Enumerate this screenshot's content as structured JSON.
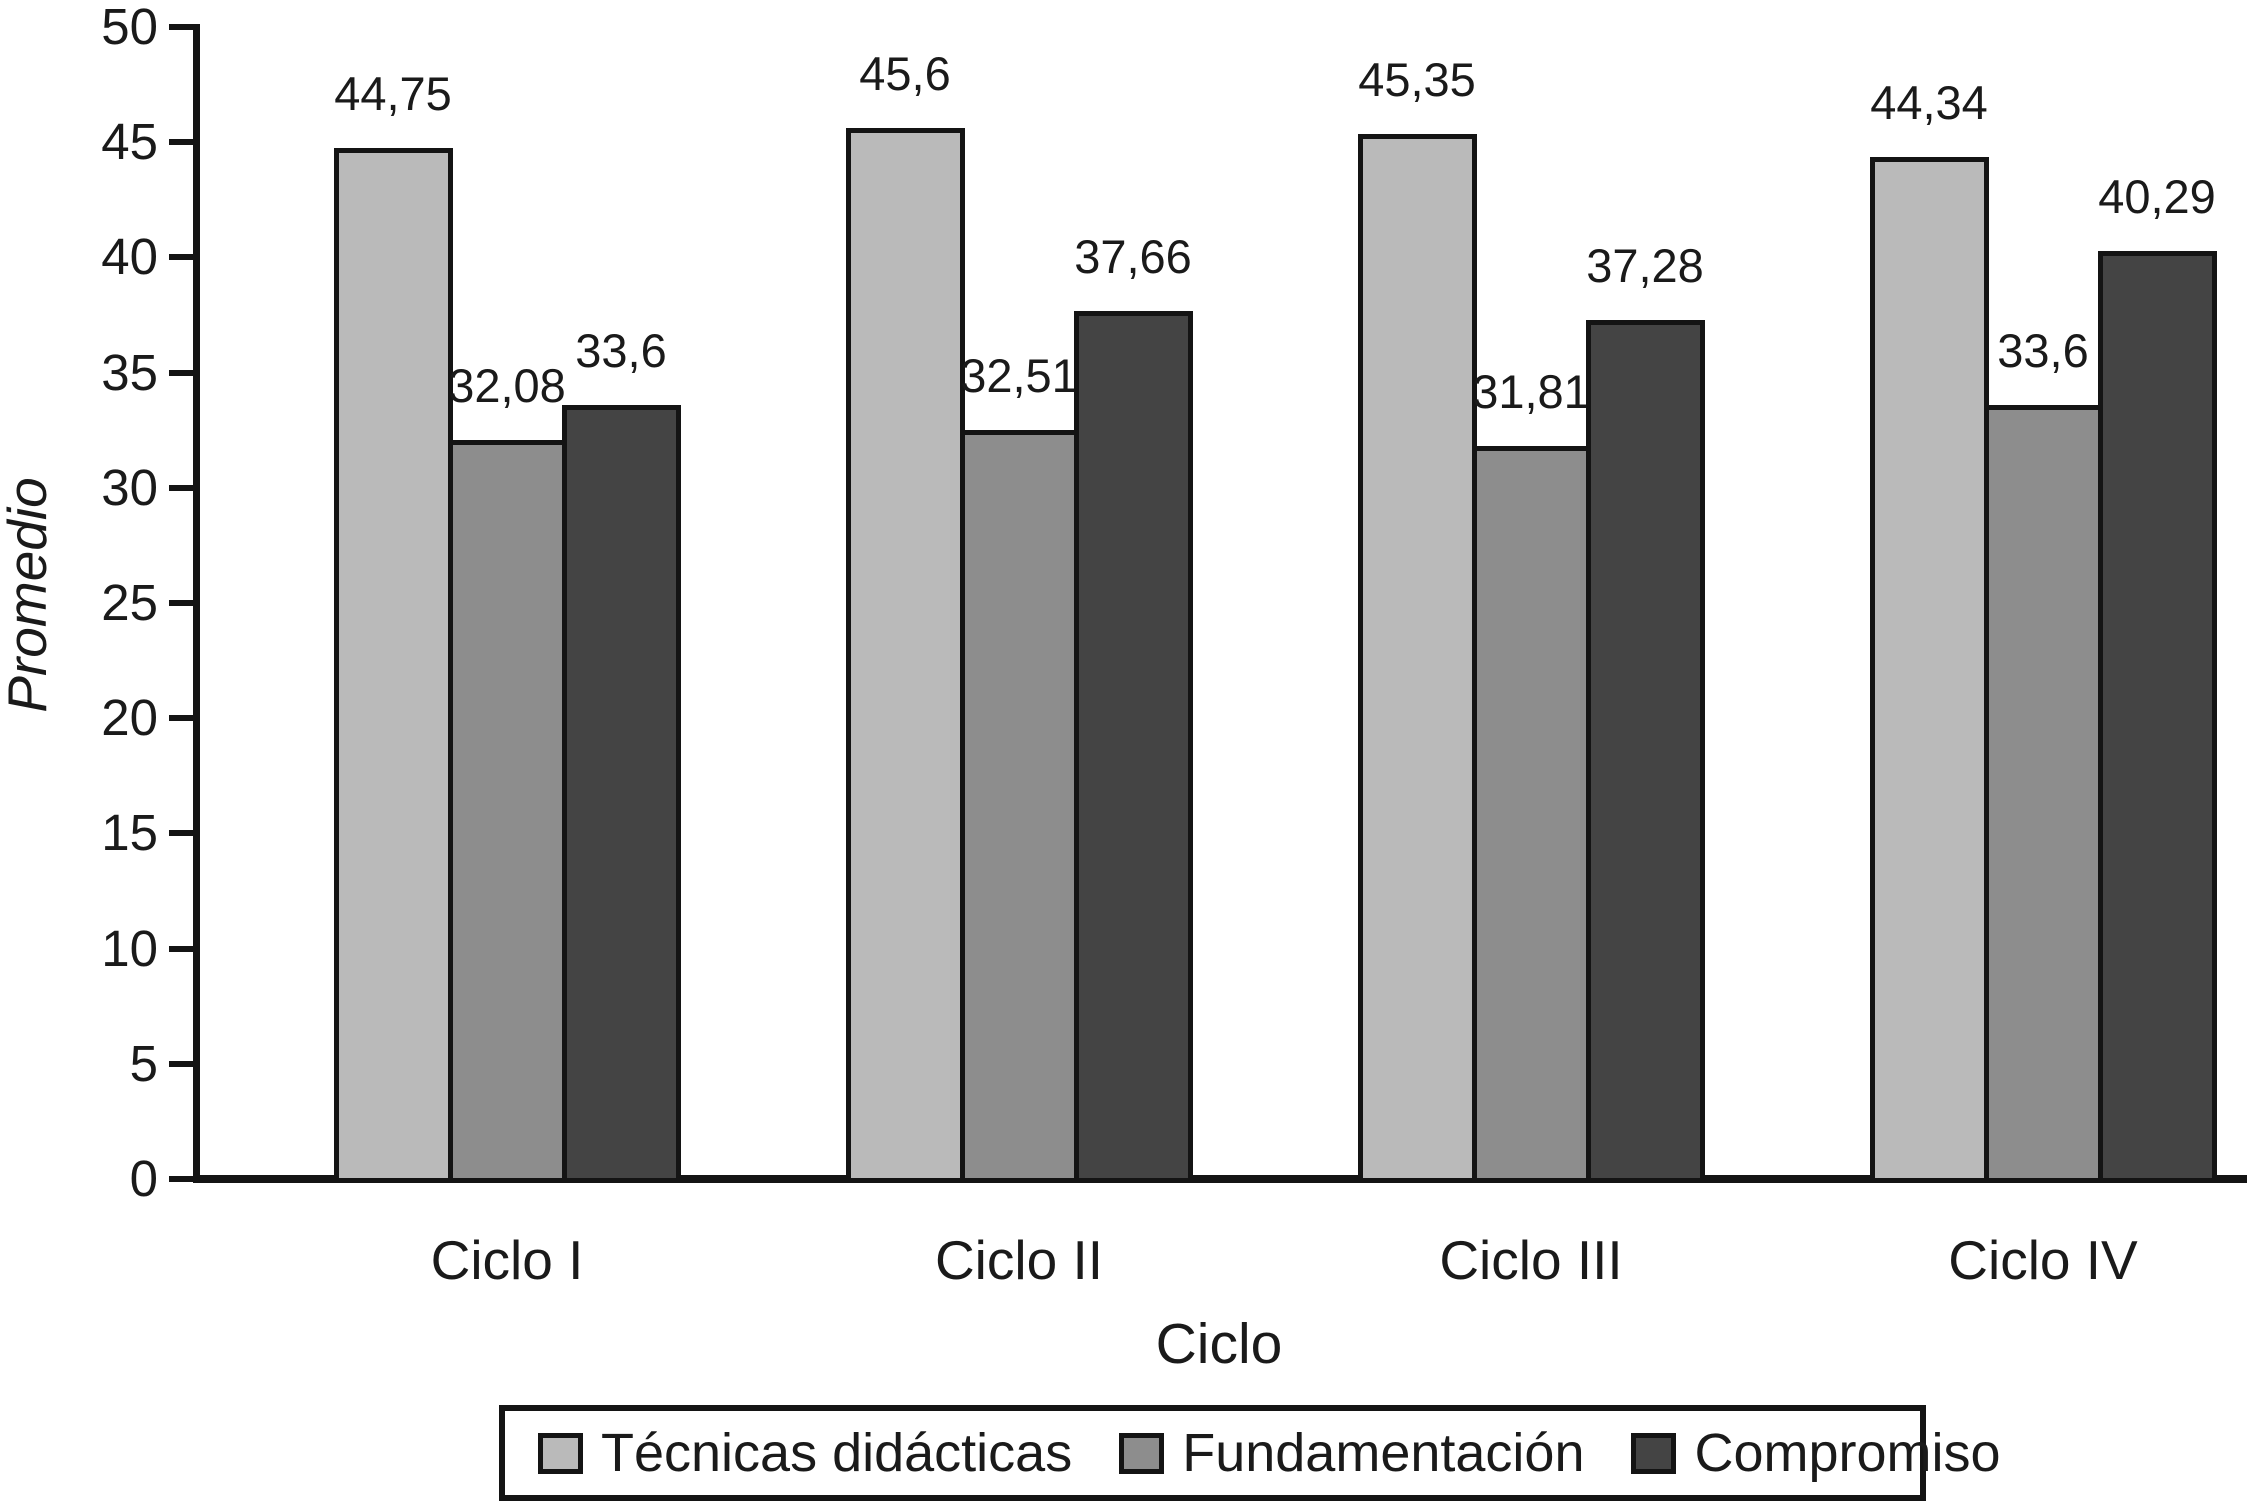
{
  "chart_data": {
    "type": "bar",
    "title": "",
    "xlabel": "Ciclo",
    "ylabel": "Promedio",
    "ylim": [
      0,
      50
    ],
    "ytick_step": 5,
    "ytick_labels": [
      "0",
      "5",
      "10",
      "15",
      "20",
      "25",
      "30",
      "35",
      "40",
      "45",
      "50"
    ],
    "grid": false,
    "legend_position": "bottom",
    "background_color": "#ffffff",
    "axis_color": "#141414",
    "text_color": "#1a1a1a",
    "decimal_separator": ",",
    "categories": [
      "Ciclo I",
      "Ciclo II",
      "Ciclo III",
      "Ciclo IV"
    ],
    "series": [
      {
        "name": "Técnicas didácticas",
        "color": "#bababa",
        "values": [
          44.75,
          45.6,
          45.35,
          44.34
        ],
        "value_labels": [
          "44,75",
          "45,6",
          "45,35",
          "44,34"
        ]
      },
      {
        "name": "Fundamentación",
        "color": "#8d8d8d",
        "values": [
          32.08,
          32.51,
          31.81,
          33.6
        ],
        "value_labels": [
          "32,08",
          "32,51",
          "31,81",
          "33,6"
        ]
      },
      {
        "name": "Compromiso",
        "color": "#444444",
        "values": [
          33.6,
          37.66,
          37.28,
          40.29
        ],
        "value_labels": [
          "33,6",
          "37,66",
          "37,28",
          "40,29"
        ]
      }
    ]
  }
}
